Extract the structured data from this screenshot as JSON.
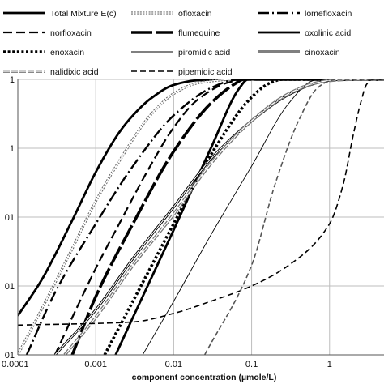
{
  "chart_data": {
    "type": "line",
    "xscale": "log",
    "yscale": "log",
    "xlim": [
      0.0001,
      5
    ],
    "ylim": [
      0.0001,
      1
    ],
    "grid": true,
    "xlabel": "component concentration (µmole/L)",
    "ylabel": "",
    "legend_position": "top",
    "x_tick_labels": [
      "0.0001",
      "0.001",
      "0.01",
      "0.1",
      "1"
    ],
    "y_tick_labels": [
      "1",
      "1",
      "01",
      "01",
      "01"
    ],
    "series": [
      {
        "name": "Total Mixture E(c)",
        "style": "thick-solid",
        "points": [
          [
            0.0001,
            0.00037
          ],
          [
            0.0002,
            0.0012
          ],
          [
            0.0005,
            0.009
          ],
          [
            0.001,
            0.045
          ],
          [
            0.002,
            0.17
          ],
          [
            0.003,
            0.3
          ],
          [
            0.005,
            0.52
          ],
          [
            0.01,
            0.83
          ],
          [
            0.02,
            0.97
          ],
          [
            0.05,
            1
          ],
          [
            5,
            1
          ]
        ]
      },
      {
        "name": "ofloxacin",
        "style": "double-dotted",
        "points": [
          [
            0.0001,
            0.0001
          ],
          [
            0.0002,
            0.00045
          ],
          [
            0.0005,
            0.0035
          ],
          [
            0.001,
            0.017
          ],
          [
            0.002,
            0.065
          ],
          [
            0.005,
            0.3
          ],
          [
            0.01,
            0.62
          ],
          [
            0.02,
            0.88
          ],
          [
            0.05,
            0.99
          ],
          [
            0.08,
            1
          ],
          [
            5,
            1
          ]
        ]
      },
      {
        "name": "lomefloxacin",
        "style": "dash-dot",
        "points": [
          [
            0.00013,
            0.0001
          ],
          [
            0.0003,
            0.0008
          ],
          [
            0.001,
            0.008
          ],
          [
            0.003,
            0.055
          ],
          [
            0.01,
            0.3
          ],
          [
            0.03,
            0.75
          ],
          [
            0.06,
            0.98
          ],
          [
            0.08,
            1
          ],
          [
            5,
            1
          ]
        ]
      },
      {
        "name": "norfloxacin",
        "style": "long-dash",
        "points": [
          [
            0.0003,
            0.0001
          ],
          [
            0.0005,
            0.00035
          ],
          [
            0.001,
            0.0018
          ],
          [
            0.002,
            0.008
          ],
          [
            0.005,
            0.055
          ],
          [
            0.01,
            0.2
          ],
          [
            0.02,
            0.5
          ],
          [
            0.05,
            0.9
          ],
          [
            0.08,
            1
          ],
          [
            5,
            1
          ]
        ]
      },
      {
        "name": "flumequine",
        "style": "thick-dash",
        "points": [
          [
            0.0005,
            0.0001
          ],
          [
            0.001,
            0.0007
          ],
          [
            0.003,
            0.008
          ],
          [
            0.01,
            0.09
          ],
          [
            0.03,
            0.45
          ],
          [
            0.06,
            0.85
          ],
          [
            0.08,
            1
          ],
          [
            5,
            1
          ]
        ]
      },
      {
        "name": "oxolinic acid",
        "style": "thick-solid",
        "points": [
          [
            0.0018,
            0.0001
          ],
          [
            0.003,
            0.00035
          ],
          [
            0.01,
            0.0065
          ],
          [
            0.03,
            0.1
          ],
          [
            0.07,
            0.75
          ],
          [
            0.09,
            1
          ],
          [
            5,
            1
          ]
        ]
      },
      {
        "name": "enoxacin",
        "style": "thick-dotted",
        "points": [
          [
            0.0013,
            0.0001
          ],
          [
            0.003,
            0.0006
          ],
          [
            0.01,
            0.008
          ],
          [
            0.03,
            0.08
          ],
          [
            0.1,
            0.55
          ],
          [
            0.17,
            0.88
          ],
          [
            0.25,
            1
          ],
          [
            5,
            1
          ]
        ]
      },
      {
        "name": "piromidic acid",
        "style": "thin-solid",
        "points": [
          [
            0.004,
            0.0001
          ],
          [
            0.01,
            0.0006
          ],
          [
            0.03,
            0.0055
          ],
          [
            0.1,
            0.055
          ],
          [
            0.3,
            0.45
          ],
          [
            0.6,
            0.95
          ],
          [
            0.75,
            1
          ],
          [
            5,
            1
          ]
        ]
      },
      {
        "name": "cinoxacin",
        "style": "double-solid",
        "points": [
          [
            0.0003,
            0.0001
          ],
          [
            0.001,
            0.00045
          ],
          [
            0.003,
            0.0025
          ],
          [
            0.01,
            0.014
          ],
          [
            0.03,
            0.07
          ],
          [
            0.1,
            0.25
          ],
          [
            0.3,
            0.6
          ],
          [
            0.6,
            0.85
          ],
          [
            1,
            0.97
          ],
          [
            2,
            1
          ],
          [
            5,
            1
          ]
        ]
      },
      {
        "name": "nalidixic acid",
        "style": "double-dashed",
        "points": [
          [
            0.0004,
            0.0001
          ],
          [
            0.001,
            0.00035
          ],
          [
            0.003,
            0.002
          ],
          [
            0.01,
            0.011
          ],
          [
            0.03,
            0.06
          ],
          [
            0.1,
            0.25
          ],
          [
            0.3,
            0.62
          ],
          [
            0.6,
            0.86
          ],
          [
            1,
            0.96
          ],
          [
            2,
            1
          ],
          [
            5,
            1
          ]
        ]
      },
      {
        "name": "pipemidic acid",
        "style": "dashed",
        "points": [
          [
            0.0001,
            0.00027
          ],
          [
            0.003,
            0.0003
          ],
          [
            0.01,
            0.0004
          ],
          [
            0.03,
            0.0006
          ],
          [
            0.1,
            0.001
          ],
          [
            0.3,
            0.002
          ],
          [
            1,
            0.008
          ],
          [
            1.5,
            0.03
          ],
          [
            2,
            0.15
          ],
          [
            2.5,
            0.45
          ],
          [
            3,
            0.85
          ],
          [
            3.5,
            1
          ],
          [
            5,
            1
          ]
        ]
      },
      {
        "name": "",
        "style": "gray-dashed",
        "points": [
          [
            0.025,
            0.0001
          ],
          [
            0.1,
            0.002
          ],
          [
            0.2,
            0.03
          ],
          [
            0.4,
            0.25
          ],
          [
            0.7,
            0.75
          ],
          [
            1,
            0.95
          ],
          [
            1.3,
            1
          ],
          [
            5,
            1
          ]
        ]
      }
    ]
  }
}
